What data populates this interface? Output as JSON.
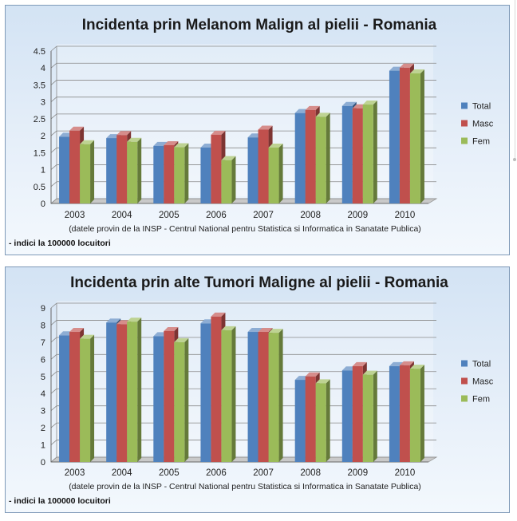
{
  "chart_data": [
    {
      "type": "bar",
      "title": "Incidenta prin Melanom Malign al pielii - Romania",
      "categories": [
        "2003",
        "2004",
        "2005",
        "2006",
        "2007",
        "2008",
        "2009",
        "2010"
      ],
      "series": [
        {
          "name": "Total",
          "color": "#4f81bd",
          "values": [
            1.97,
            1.93,
            1.7,
            1.65,
            1.95,
            2.67,
            2.88,
            3.92
          ]
        },
        {
          "name": "Masc",
          "color": "#c0504d",
          "values": [
            2.15,
            2.02,
            1.72,
            2.03,
            2.18,
            2.76,
            2.81,
            4.01
          ]
        },
        {
          "name": "Fem",
          "color": "#9bbb59",
          "values": [
            1.75,
            1.82,
            1.66,
            1.28,
            1.65,
            2.56,
            2.92,
            3.84
          ]
        }
      ],
      "yticks": [
        "0",
        "0.5",
        "1",
        "1.5",
        "2",
        "2.5",
        "3",
        "3.5",
        "4",
        "4.5"
      ],
      "ylim": [
        0,
        4.5
      ],
      "grid": true,
      "legend_position": "right",
      "source_note": "(datele provin de la INSP - Centrul National pentru Statistica si Informatica in Sanatate Publica)",
      "unit_note": "- indici la 100000 locuitori"
    },
    {
      "type": "bar",
      "title": "Incidenta prin alte Tumori Maligne al pielii - Romania",
      "categories": [
        "2003",
        "2004",
        "2005",
        "2006",
        "2007",
        "2008",
        "2009",
        "2010"
      ],
      "series": [
        {
          "name": "Total",
          "color": "#4f81bd",
          "values": [
            7.4,
            8.15,
            7.35,
            8.1,
            7.6,
            4.8,
            5.35,
            5.6
          ]
        },
        {
          "name": "Masc",
          "color": "#c0504d",
          "values": [
            7.6,
            8.05,
            7.65,
            8.5,
            7.6,
            5.0,
            5.6,
            5.65
          ]
        },
        {
          "name": "Fem",
          "color": "#9bbb59",
          "values": [
            7.2,
            8.2,
            7.0,
            7.7,
            7.55,
            4.6,
            5.1,
            5.45
          ]
        }
      ],
      "yticks": [
        "0",
        "1",
        "2",
        "3",
        "4",
        "5",
        "6",
        "7",
        "8",
        "9"
      ],
      "ylim": [
        0,
        9
      ],
      "grid": true,
      "legend_position": "right",
      "source_note": "(datele provin de la INSP - Centrul National pentru Statistica si Informatica in Sanatate Publica)",
      "unit_note": "- indici la 100000 locuitori"
    }
  ]
}
